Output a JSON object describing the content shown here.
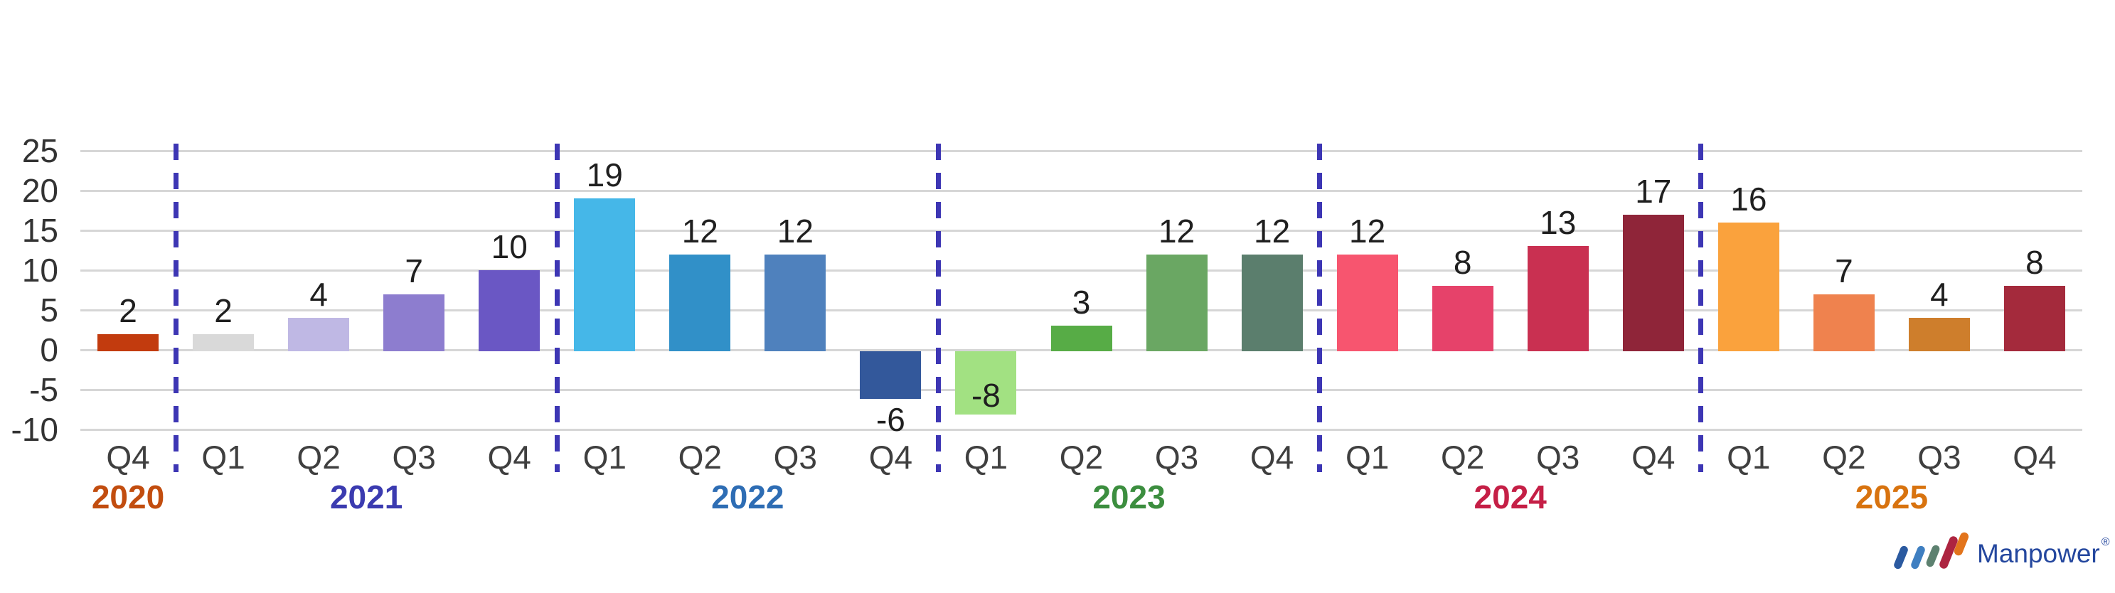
{
  "chart_data": {
    "type": "bar",
    "title": "",
    "xlabel": "",
    "ylabel": "",
    "ylim": [
      -10,
      25
    ],
    "yticks": [
      25,
      20,
      15,
      10,
      5,
      0,
      -5,
      -10
    ],
    "grid": true,
    "gridline_color": "#D6D6D6",
    "separator_color": "#3D36B4",
    "axis_text_color": "#333333",
    "value_label_color": "#1F1F1F",
    "quarter_label_color": "#3F3F3F",
    "groups": [
      {
        "year": "2020",
        "year_color": "#C24D0F",
        "quarters": [
          {
            "label": "Q4",
            "value": 2,
            "color": "#C23B0E"
          }
        ]
      },
      {
        "year": "2021",
        "year_color": "#3B3BB0",
        "quarters": [
          {
            "label": "Q1",
            "value": 2,
            "color": "#D9D9D9"
          },
          {
            "label": "Q2",
            "value": 4,
            "color": "#BFB8E4"
          },
          {
            "label": "Q3",
            "value": 7,
            "color": "#8D7DCF"
          },
          {
            "label": "Q4",
            "value": 10,
            "color": "#6A57C4"
          }
        ]
      },
      {
        "year": "2022",
        "year_color": "#2E6DB4",
        "quarters": [
          {
            "label": "Q1",
            "value": 19,
            "color": "#45B7E8"
          },
          {
            "label": "Q2",
            "value": 12,
            "color": "#3190C8"
          },
          {
            "label": "Q3",
            "value": 12,
            "color": "#4F81BD"
          },
          {
            "label": "Q4",
            "value": -6,
            "color": "#33589B"
          }
        ]
      },
      {
        "year": "2023",
        "year_color": "#3C8E3F",
        "quarters": [
          {
            "label": "Q1",
            "value": -8,
            "color": "#A2E182"
          },
          {
            "label": "Q2",
            "value": 3,
            "color": "#57AC46"
          },
          {
            "label": "Q3",
            "value": 12,
            "color": "#6AA763"
          },
          {
            "label": "Q4",
            "value": 12,
            "color": "#5B7E6D"
          }
        ]
      },
      {
        "year": "2024",
        "year_color": "#C51F46",
        "quarters": [
          {
            "label": "Q1",
            "value": 12,
            "color": "#F7556F"
          },
          {
            "label": "Q2",
            "value": 8,
            "color": "#E6426A"
          },
          {
            "label": "Q3",
            "value": 13,
            "color": "#C93051"
          },
          {
            "label": "Q4",
            "value": 17,
            "color": "#8F2539"
          }
        ]
      },
      {
        "year": "2025",
        "year_color": "#D8730F",
        "quarters": [
          {
            "label": "Q1",
            "value": 16,
            "color": "#FAA23D"
          },
          {
            "label": "Q2",
            "value": 7,
            "color": "#EF824E"
          },
          {
            "label": "Q3",
            "value": 4,
            "color": "#CE7E2C"
          },
          {
            "label": "Q4",
            "value": 8,
            "color": "#A42A3C"
          }
        ]
      }
    ]
  },
  "logo": {
    "text": "Manpower",
    "registered_mark": "®",
    "text_color": "#24479E",
    "bar_colors": [
      "#2B5AA0",
      "#3F7FC1",
      "#5D8170",
      "#AD2440",
      "#E2741C"
    ]
  }
}
